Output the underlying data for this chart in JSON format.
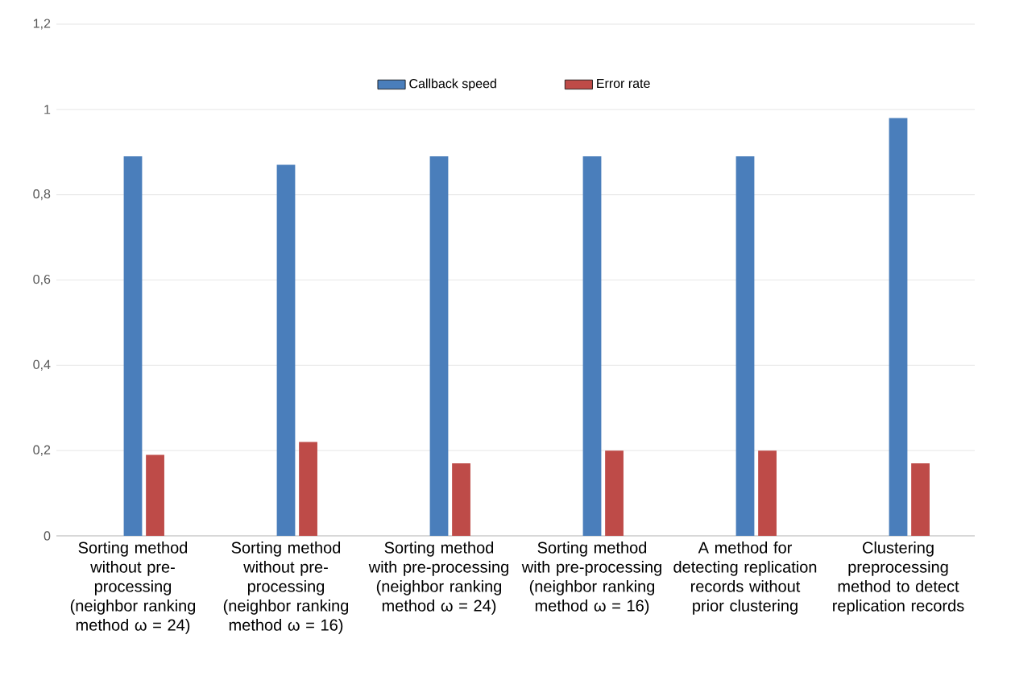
{
  "chart_data": {
    "type": "bar",
    "categories": [
      "Sorting method without pre-processing (neighbor ranking method ω = 24)",
      "Sorting method without pre-processing (neighbor ranking method ω = 16)",
      "Sorting method with pre-processing (neighbor ranking method ω = 24)",
      "Sorting method with pre-processing (neighbor ranking method ω = 16)",
      "A method for detecting replication records without prior clustering",
      "Clustering preprocessing method to detect replication records"
    ],
    "series": [
      {
        "name": "Callback speed",
        "color": "#4a7ebb",
        "values": [
          0.89,
          0.87,
          0.89,
          0.89,
          0.89,
          0.98
        ]
      },
      {
        "name": "Error rate",
        "color": "#be4b48",
        "values": [
          0.19,
          0.22,
          0.17,
          0.2,
          0.2,
          0.17
        ]
      }
    ],
    "ylim": [
      0,
      1.2
    ],
    "yticks": [
      {
        "value": 0,
        "label": "0"
      },
      {
        "value": 0.2,
        "label": "0,2"
      },
      {
        "value": 0.4,
        "label": "0,4"
      },
      {
        "value": 0.6,
        "label": "0,6"
      },
      {
        "value": 0.8,
        "label": "0,8"
      },
      {
        "value": 1,
        "label": "1"
      },
      {
        "value": 1.2,
        "label": "1,2"
      }
    ],
    "grid": "y",
    "legend": "top"
  }
}
